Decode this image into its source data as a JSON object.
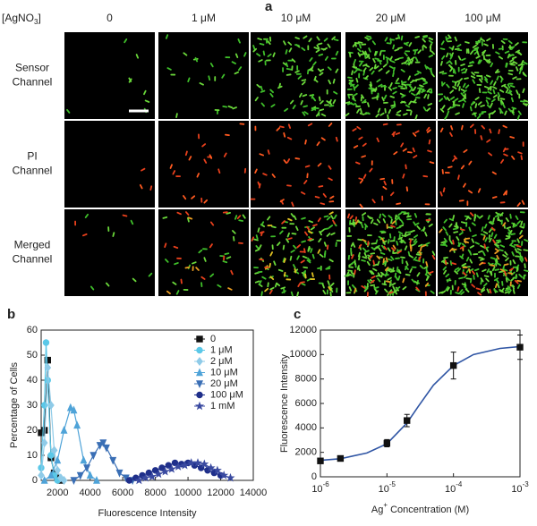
{
  "panel_a": {
    "label": "a",
    "concentration": {
      "text": "[AgNO",
      "sub": "3",
      "end": "]"
    },
    "columns": [
      "0",
      "1 μM",
      "10 μM",
      "20 μM",
      "100 μM"
    ],
    "rows": [
      [
        "Sensor",
        "Channel"
      ],
      [
        "PI",
        "Channel"
      ],
      [
        "Merged",
        "Channel"
      ]
    ]
  },
  "chart_data": [
    {
      "type": "line",
      "label": "b",
      "xlabel": "Fluorescence Intensity",
      "ylabel": "Percentage of Cells",
      "xlim": [
        1000,
        14000
      ],
      "xticks": [
        2000,
        4000,
        6000,
        8000,
        10000,
        12000,
        14000
      ],
      "ylim": [
        0,
        60
      ],
      "yticks": [
        0,
        10,
        20,
        30,
        40,
        50,
        60
      ],
      "legend": "upper right",
      "series": [
        {
          "name": "0",
          "color": "#111111",
          "marker": "square",
          "x": [
            1000,
            1200,
            1400,
            1600,
            1800,
            2000,
            2200
          ],
          "values": [
            19,
            20,
            48,
            9,
            3,
            1,
            0
          ]
        },
        {
          "name": "1 μM",
          "color": "#5bc8e8",
          "marker": "circle",
          "x": [
            1000,
            1200,
            1300,
            1400,
            1600,
            1800,
            2000
          ],
          "values": [
            5,
            30,
            55,
            40,
            10,
            2,
            0
          ]
        },
        {
          "name": "2 μM",
          "color": "#8fcbe8",
          "marker": "diamond",
          "x": [
            1000,
            1200,
            1400,
            1600,
            1800,
            2000,
            2200,
            2400
          ],
          "values": [
            2,
            15,
            45,
            30,
            12,
            4,
            1,
            0
          ]
        },
        {
          "name": "10 μM",
          "color": "#4fa3d8",
          "marker": "triangle",
          "x": [
            1200,
            1600,
            2000,
            2400,
            2800,
            3000,
            3200,
            3600,
            4000,
            4400
          ],
          "values": [
            0,
            2,
            8,
            20,
            29,
            28,
            22,
            8,
            2,
            0
          ]
        },
        {
          "name": "20 μM",
          "color": "#3a6fb5",
          "marker": "triangle-down",
          "x": [
            3000,
            3400,
            3800,
            4200,
            4600,
            4800,
            5000,
            5400,
            5800,
            6200,
            6600
          ],
          "values": [
            0,
            2,
            5,
            10,
            14,
            15,
            13,
            8,
            3,
            1,
            0
          ]
        },
        {
          "name": "100 μM",
          "color": "#1f2f8a",
          "marker": "circle",
          "x": [
            6400,
            6800,
            7200,
            7600,
            8000,
            8400,
            8800,
            9200,
            9600,
            10000,
            10400,
            10800,
            11200,
            11600,
            12000
          ],
          "values": [
            0,
            1,
            2,
            3,
            4,
            5,
            6,
            7,
            6.5,
            7,
            6,
            5,
            4,
            3,
            2
          ]
        },
        {
          "name": "1 mM",
          "color": "#3a4aa0",
          "marker": "star",
          "x": [
            7000,
            7400,
            7800,
            8200,
            8600,
            9000,
            9400,
            9800,
            10200,
            10600,
            11000,
            11400,
            11800,
            12200,
            12600
          ],
          "values": [
            0,
            1,
            1.5,
            2.5,
            3.5,
            4.5,
            5.5,
            6,
            7,
            7,
            6.5,
            5,
            4,
            2,
            1
          ]
        }
      ]
    },
    {
      "type": "scatter",
      "label": "c",
      "log_x": true,
      "xlabel": {
        "text": "Ag",
        "sup": "+",
        "end": " Concentration (M)"
      },
      "ylabel": "Fluorescence Intensity",
      "xlim": [
        1e-06,
        0.001
      ],
      "xticks": [
        {
          "value": 1e-06,
          "label": "10",
          "sup": "-6"
        },
        {
          "value": 1e-05,
          "label": "10",
          "sup": "-5"
        },
        {
          "value": 0.0001,
          "label": "10",
          "sup": "-4"
        },
        {
          "value": 0.001,
          "label": "10",
          "sup": "-3"
        }
      ],
      "ylim": [
        0,
        12000
      ],
      "yticks": [
        0,
        2000,
        4000,
        6000,
        8000,
        10000,
        12000
      ],
      "series": [
        {
          "color": "#111111",
          "x": [
            1e-06,
            2e-06,
            1e-05,
            2e-05,
            0.0001,
            0.001
          ],
          "values": [
            1300,
            1500,
            2750,
            4600,
            9100,
            10600
          ],
          "errors": [
            150,
            150,
            300,
            500,
            1100,
            1000
          ]
        }
      ],
      "fit": {
        "color": "#2f55a4",
        "x": [
          1e-06,
          2e-06,
          5e-06,
          1e-05,
          2e-05,
          3e-05,
          5e-05,
          0.0001,
          0.0002,
          0.0005,
          0.001
        ],
        "values": [
          1350,
          1480,
          1950,
          2700,
          4400,
          5800,
          7500,
          9100,
          10000,
          10500,
          10650
        ]
      }
    }
  ]
}
